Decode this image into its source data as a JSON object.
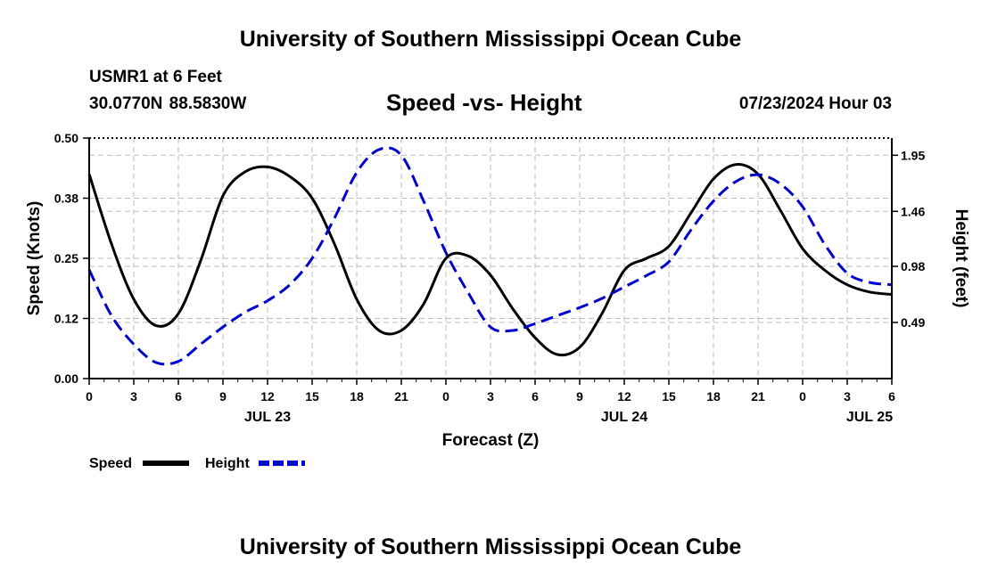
{
  "header": {
    "title": "University of Southern Mississippi Ocean Cube",
    "station": "USMR1 at 6 Feet",
    "coords": "30.0770N  88.5830W",
    "chart_title": "Speed -vs- Height",
    "datetime": "07/23/2024 Hour 03"
  },
  "footer": {
    "title": "University of Southern Mississippi Ocean Cube"
  },
  "colors": {
    "speed": "#000000",
    "height": "#0000cc",
    "grid": "#bbbbbb"
  },
  "chart_data": {
    "type": "line",
    "title": "Speed -vs- Height",
    "xlabel": "Forecast (Z)",
    "ylabel": "Speed (Knots)",
    "y2label": "Height (feet)",
    "x_range": [
      0,
      54
    ],
    "x_ticks": [
      0,
      3,
      6,
      9,
      12,
      15,
      18,
      21,
      24,
      27,
      30,
      33,
      36,
      39,
      42,
      45,
      48,
      51,
      54
    ],
    "x_tick_labels": [
      "0",
      "3",
      "6",
      "9",
      "12",
      "15",
      "18",
      "21",
      "0",
      "3",
      "6",
      "9",
      "12",
      "15",
      "18",
      "21",
      "0",
      "3",
      "6"
    ],
    "date_labels": [
      {
        "x": 12,
        "label": "JUL 23"
      },
      {
        "x": 36,
        "label": "JUL 24"
      },
      {
        "x": 52.5,
        "label": "JUL 25"
      }
    ],
    "ylim": [
      0,
      0.5
    ],
    "y_ticks": [
      0,
      0.125,
      0.25,
      0.375,
      0.5
    ],
    "y_tick_labels": [
      "0.00",
      "0.12",
      "0.25",
      "0.38",
      "0.50"
    ],
    "y2lim": [
      0,
      2.1
    ],
    "y2_ticks": [
      0.49,
      0.98,
      1.46,
      1.95
    ],
    "y2_tick_labels": [
      "0.49",
      "0.98",
      "1.46",
      "1.95"
    ],
    "legend": [
      {
        "name": "Speed",
        "style": "solid"
      },
      {
        "name": "Height",
        "style": "dashed"
      }
    ],
    "series": [
      {
        "name": "Speed",
        "axis": "left",
        "x": [
          0,
          1.5,
          3,
          4.5,
          6,
          7.5,
          9,
          10.5,
          12,
          13.5,
          15,
          16.5,
          18,
          19.5,
          21,
          22.5,
          24,
          25.5,
          27,
          28.5,
          30,
          31.5,
          33,
          34.5,
          36,
          37.5,
          39,
          40.5,
          42,
          43.5,
          45,
          46.5,
          48,
          49.5,
          51,
          52.5,
          54
        ],
        "values": [
          0.425,
          0.28,
          0.165,
          0.11,
          0.135,
          0.245,
          0.38,
          0.43,
          0.44,
          0.42,
          0.375,
          0.28,
          0.165,
          0.1,
          0.1,
          0.155,
          0.25,
          0.255,
          0.215,
          0.145,
          0.085,
          0.05,
          0.065,
          0.135,
          0.225,
          0.25,
          0.275,
          0.345,
          0.415,
          0.445,
          0.425,
          0.35,
          0.27,
          0.225,
          0.195,
          0.18,
          0.175
        ]
      },
      {
        "name": "Height",
        "axis": "right",
        "x": [
          0,
          1.5,
          3,
          4.5,
          6,
          7.5,
          9,
          10.5,
          12,
          13.5,
          15,
          16.5,
          18,
          19.5,
          21,
          22.5,
          24,
          25.5,
          27,
          28.5,
          30,
          31.5,
          33,
          34.5,
          36,
          37.5,
          39,
          40.5,
          42,
          43.5,
          45,
          46.5,
          48,
          49.5,
          51,
          52.5,
          54
        ],
        "values": [
          0.95,
          0.55,
          0.3,
          0.14,
          0.15,
          0.3,
          0.45,
          0.58,
          0.68,
          0.82,
          1.05,
          1.4,
          1.8,
          2.0,
          1.95,
          1.55,
          1.1,
          0.75,
          0.45,
          0.42,
          0.48,
          0.55,
          0.62,
          0.7,
          0.8,
          0.9,
          1.02,
          1.3,
          1.55,
          1.72,
          1.78,
          1.7,
          1.5,
          1.17,
          0.92,
          0.84,
          0.82
        ]
      }
    ]
  }
}
